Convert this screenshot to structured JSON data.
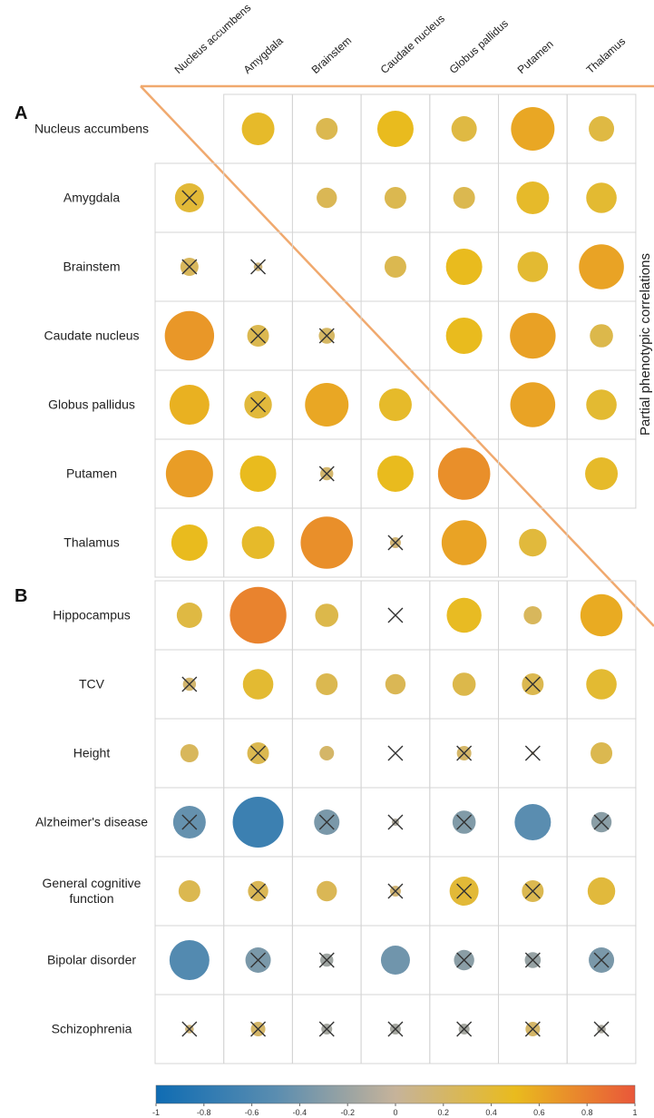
{
  "chart_data": {
    "type": "corrplot",
    "columns": [
      "Nucleus accumbens",
      "Amygdala",
      "Brainstem",
      "Caudate nucleus",
      "Globus pallidus",
      "Putamen",
      "Thalamus"
    ],
    "side_label": "Partial phenotypic correlations",
    "panels": [
      {
        "label": "A",
        "rows": [
          "Nucleus accumbens",
          "Amygdala",
          "Brainstem",
          "Caudate nucleus",
          "Globus pallidus",
          "Putamen",
          "Thalamus"
        ],
        "values": [
          [
            null,
            0.45,
            0.3,
            0.5,
            0.35,
            0.6,
            0.35
          ],
          [
            0.4,
            null,
            0.28,
            0.3,
            0.3,
            0.45,
            0.42
          ],
          [
            0.25,
            0.12,
            null,
            0.3,
            0.5,
            0.42,
            0.62
          ],
          [
            0.68,
            0.3,
            0.22,
            null,
            0.5,
            0.63,
            0.32
          ],
          [
            0.55,
            0.38,
            0.6,
            0.45,
            null,
            0.62,
            0.42
          ],
          [
            0.65,
            0.5,
            0.18,
            0.5,
            0.72,
            null,
            0.45
          ],
          [
            0.5,
            0.45,
            0.72,
            0.15,
            0.62,
            0.38,
            null
          ]
        ],
        "crossed": [
          [
            false,
            false,
            false,
            false,
            false,
            false,
            false
          ],
          [
            true,
            false,
            false,
            false,
            false,
            false,
            false
          ],
          [
            true,
            true,
            false,
            false,
            false,
            false,
            false
          ],
          [
            false,
            true,
            true,
            false,
            false,
            false,
            false
          ],
          [
            false,
            true,
            false,
            false,
            false,
            false,
            false
          ],
          [
            false,
            false,
            true,
            false,
            false,
            false,
            false
          ],
          [
            false,
            false,
            false,
            true,
            false,
            false,
            false
          ]
        ]
      },
      {
        "label": "B",
        "rows": [
          "Hippocampus",
          "TCV",
          "Height",
          "Alzheimer's disease",
          "General cognitive function",
          "Bipolar disorder",
          "Schizophrenia"
        ],
        "values": [
          [
            0.35,
            0.78,
            0.32,
            0.0,
            0.48,
            0.25,
            0.58
          ],
          [
            0.18,
            0.42,
            0.3,
            0.28,
            0.32,
            0.3,
            0.42
          ],
          [
            0.25,
            0.3,
            0.2,
            0.0,
            0.2,
            0.05,
            0.3
          ],
          [
            -0.45,
            -0.7,
            -0.35,
            -0.1,
            -0.32,
            -0.5,
            -0.28
          ],
          [
            0.3,
            0.28,
            0.28,
            0.15,
            0.4,
            0.3,
            0.38
          ],
          [
            -0.55,
            -0.35,
            -0.18,
            -0.4,
            -0.28,
            -0.22,
            -0.35
          ],
          [
            0.12,
            0.2,
            -0.15,
            -0.15,
            -0.15,
            0.2,
            -0.12
          ]
        ],
        "crossed": [
          [
            false,
            false,
            false,
            true,
            false,
            false,
            false
          ],
          [
            true,
            false,
            false,
            false,
            false,
            true,
            false
          ],
          [
            false,
            true,
            false,
            true,
            true,
            true,
            false
          ],
          [
            true,
            false,
            true,
            true,
            true,
            false,
            true
          ],
          [
            false,
            true,
            false,
            true,
            true,
            true,
            false
          ],
          [
            false,
            true,
            true,
            false,
            true,
            true,
            true
          ],
          [
            true,
            true,
            true,
            true,
            true,
            true,
            true
          ]
        ]
      }
    ],
    "colorbar": {
      "lim": [
        -1,
        1
      ],
      "ticks": [
        -1,
        -0.8,
        -0.6,
        -0.4,
        -0.2,
        0,
        0.2,
        0.4,
        0.6,
        0.8,
        1
      ],
      "colors": [
        "#0f6cb3",
        "#5a8db0",
        "#c6b39a",
        "#e9bb1e",
        "#e9573a"
      ]
    }
  }
}
